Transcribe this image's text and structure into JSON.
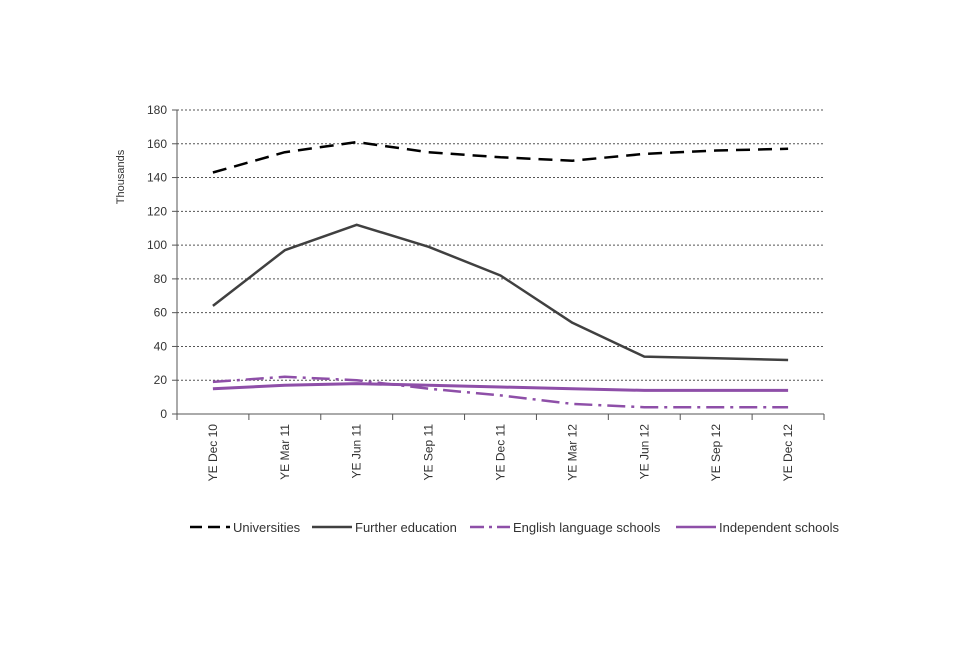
{
  "chart_data": {
    "type": "line",
    "ylabel": "Thousands",
    "ylim": [
      0,
      180
    ],
    "yticks": [
      0,
      20,
      40,
      60,
      80,
      100,
      120,
      140,
      160,
      180
    ],
    "grid": true,
    "legend_position": "bottom",
    "categories": [
      "YE Dec 10",
      "YE Mar 11",
      "YE Jun 11",
      "YE Sep 11",
      "YE Dec 11",
      "YE Mar 12",
      "YE Jun 12",
      "YE Sep 12",
      "YE Dec 12"
    ],
    "series": [
      {
        "name": "Universities",
        "color": "#000000",
        "style": "dashed",
        "values": [
          143,
          155,
          161,
          155,
          152,
          150,
          154,
          156,
          157
        ]
      },
      {
        "name": "Further education",
        "color": "#404040",
        "style": "solid",
        "values": [
          64,
          97,
          112,
          99,
          82,
          54,
          34,
          33,
          32
        ]
      },
      {
        "name": "English language schools",
        "color": "#8e4fa8",
        "style": "dashdot",
        "values": [
          19,
          22,
          20,
          15,
          11,
          6,
          4,
          4,
          4
        ]
      },
      {
        "name": "Independent schools",
        "color": "#8e4fa8",
        "style": "solid",
        "values": [
          15,
          17,
          18,
          17,
          16,
          15,
          14,
          14,
          14
        ]
      }
    ]
  }
}
